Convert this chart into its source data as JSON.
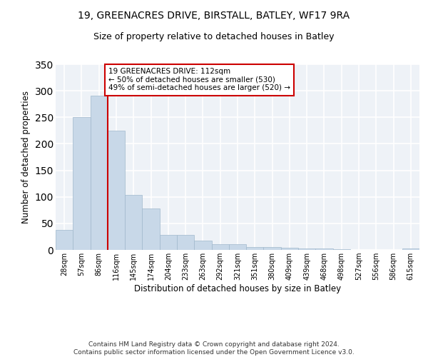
{
  "title_line1": "19, GREENACRES DRIVE, BIRSTALL, BATLEY, WF17 9RA",
  "title_line2": "Size of property relative to detached houses in Batley",
  "xlabel": "Distribution of detached houses by size in Batley",
  "ylabel": "Number of detached properties",
  "categories": [
    "28sqm",
    "57sqm",
    "86sqm",
    "116sqm",
    "145sqm",
    "174sqm",
    "204sqm",
    "233sqm",
    "263sqm",
    "292sqm",
    "321sqm",
    "351sqm",
    "380sqm",
    "409sqm",
    "439sqm",
    "468sqm",
    "498sqm",
    "527sqm",
    "556sqm",
    "586sqm",
    "615sqm"
  ],
  "values": [
    38,
    250,
    291,
    225,
    103,
    78,
    28,
    28,
    17,
    11,
    11,
    5,
    5,
    4,
    3,
    3,
    2,
    0,
    0,
    0,
    3
  ],
  "bar_color": "#c8d8e8",
  "bar_edge_color": "#a0b8cc",
  "vline_index": 2.5,
  "vline_color": "#cc0000",
  "annotation_text": "19 GREENACRES DRIVE: 112sqm\n← 50% of detached houses are smaller (530)\n49% of semi-detached houses are larger (520) →",
  "annotation_box_color": "#ffffff",
  "annotation_border_color": "#cc0000",
  "ylim": [
    0,
    350
  ],
  "yticks": [
    0,
    50,
    100,
    150,
    200,
    250,
    300,
    350
  ],
  "background_color": "#eef2f7",
  "grid_color": "#ffffff",
  "footer_text": "Contains HM Land Registry data © Crown copyright and database right 2024.\nContains public sector information licensed under the Open Government Licence v3.0.",
  "title_fontsize": 10,
  "subtitle_fontsize": 9,
  "axis_label_fontsize": 8.5,
  "tick_fontsize": 7,
  "footer_fontsize": 6.5,
  "annotation_fontsize": 7.5
}
